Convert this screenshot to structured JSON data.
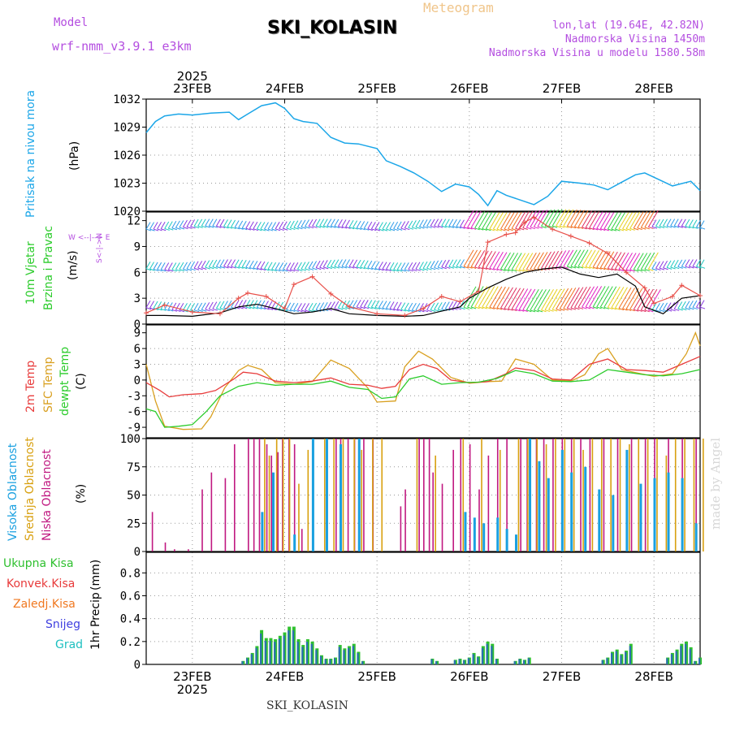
{
  "header": {
    "model_label": "Model",
    "model_name": "wrf-nmm_v3.9.1 e3km",
    "meteogram_label": "Meteogram",
    "station": "SKI_KOLASIN",
    "lonlat": "lon,lat (19.64E, 42.82N)",
    "altitude": "Nadmorska Visina 1450m",
    "model_altitude": "Nadmorska Visina u modelu 1580.58m",
    "watermark": "made by Angel",
    "footer_station": "SKI_KOLASIN"
  },
  "colors": {
    "pressure": "#1ba6e8",
    "wind_black": "#000000",
    "gust_red": "#e8504a",
    "t2m": "#e83c3c",
    "sfc": "#d9a020",
    "dewpt": "#2ccc2c",
    "high_cloud": "#1aa0e0",
    "mid_cloud": "#d8a010",
    "low_cloud": "#c01880",
    "total_precip": "#2fc02f",
    "convective": "#e83a3a",
    "frozen": "#f07820",
    "snow": "#4040e0",
    "graupel": "#1ec0c0"
  },
  "chart_data": {
    "type": "line",
    "time_axis": {
      "year": "2025",
      "start_day": 22.5,
      "end_day": 28.5,
      "tick_days": [
        23,
        24,
        25,
        26,
        27,
        28
      ],
      "tick_labels": [
        "23FEB",
        "24FEB",
        "25FEB",
        "26FEB",
        "27FEB",
        "28FEB"
      ]
    },
    "panels": [
      {
        "id": "pressure",
        "ylabel": "Pritisak na nivou mora",
        "unit": "(hPa)",
        "ylim": [
          1020,
          1032
        ],
        "yticks": [
          1020,
          1023,
          1026,
          1029,
          1032
        ],
        "series": [
          {
            "name": "MSLP",
            "x": [
              22.5,
              22.6,
              22.7,
              22.85,
              23.0,
              23.2,
              23.4,
              23.5,
              23.6,
              23.75,
              23.9,
              24.0,
              24.1,
              24.2,
              24.35,
              24.5,
              24.65,
              24.8,
              25.0,
              25.1,
              25.25,
              25.4,
              25.55,
              25.7,
              25.85,
              26.0,
              26.1,
              26.2,
              26.3,
              26.4,
              26.55,
              26.7,
              26.85,
              27.0,
              27.2,
              27.35,
              27.5,
              27.65,
              27.8,
              27.9,
              28.05,
              28.2,
              28.4,
              28.5
            ],
            "y": [
              1028.4,
              1029.6,
              1030.2,
              1030.4,
              1030.3,
              1030.5,
              1030.6,
              1029.8,
              1030.4,
              1031.3,
              1031.6,
              1031.0,
              1029.9,
              1029.6,
              1029.4,
              1027.9,
              1027.3,
              1027.2,
              1026.7,
              1025.4,
              1024.8,
              1024.1,
              1023.2,
              1022.1,
              1022.9,
              1022.6,
              1021.8,
              1020.6,
              1022.2,
              1021.7,
              1021.2,
              1020.7,
              1021.6,
              1023.2,
              1023.0,
              1022.8,
              1022.3,
              1023.1,
              1023.9,
              1024.1,
              1023.4,
              1022.7,
              1023.2,
              1022.2
            ]
          }
        ]
      },
      {
        "id": "wind",
        "ylabel": "10m Vjetar Brzina i Pravac",
        "unit": "(m/s)",
        "compass": "W <--|--> E",
        "compass_ns": "S<-|->N",
        "ylim": [
          0,
          13
        ],
        "yticks": [
          0,
          3,
          6,
          9,
          12
        ],
        "barb_rows": [
          1.8,
          6.5,
          11.2
        ],
        "series": [
          {
            "name": "speed",
            "x": [
              22.5,
              22.7,
              23.0,
              23.3,
              23.5,
              23.7,
              23.9,
              24.1,
              24.3,
              24.5,
              24.7,
              25.0,
              25.3,
              25.5,
              25.7,
              25.9,
              26.0,
              26.2,
              26.4,
              26.6,
              26.8,
              27.0,
              27.2,
              27.4,
              27.6,
              27.8,
              27.9,
              28.1,
              28.3,
              28.5
            ],
            "y": [
              1.0,
              1.0,
              0.9,
              1.3,
              2.0,
              2.3,
              1.8,
              1.2,
              1.4,
              1.8,
              1.2,
              1.0,
              0.9,
              1.0,
              1.5,
              2.0,
              3.0,
              4.2,
              5.2,
              6.0,
              6.4,
              6.6,
              5.8,
              5.4,
              5.8,
              4.4,
              2.0,
              1.2,
              3.0,
              3.3
            ]
          },
          {
            "name": "gust",
            "x": [
              22.5,
              22.7,
              23.0,
              23.3,
              23.5,
              23.6,
              23.8,
              24.0,
              24.1,
              24.3,
              24.5,
              24.7,
              25.0,
              25.3,
              25.5,
              25.7,
              25.9,
              26.1,
              26.2,
              26.4,
              26.5,
              26.6,
              26.7,
              26.9,
              27.1,
              27.3,
              27.5,
              27.7,
              27.9,
              28.0,
              28.2,
              28.3,
              28.5
            ],
            "y": [
              1.3,
              2.2,
              1.4,
              1.2,
              3.0,
              3.6,
              3.2,
              1.8,
              4.6,
              5.5,
              3.5,
              2.0,
              1.2,
              1.0,
              1.8,
              3.2,
              2.6,
              3.8,
              9.5,
              10.4,
              10.6,
              11.8,
              12.4,
              11.0,
              10.2,
              9.4,
              8.2,
              6.0,
              4.2,
              2.4,
              3.2,
              4.5,
              3.3
            ]
          }
        ]
      },
      {
        "id": "temperature",
        "ylabel": "2m Temp",
        "ylabel2": "SFC Temp",
        "ylabel3": "dewpt Temp",
        "unit": "(C)",
        "ylim": [
          -11,
          10.5
        ],
        "yticks": [
          -9,
          -6,
          -3,
          0,
          3,
          6,
          9
        ],
        "series": [
          {
            "name": "2m Temp",
            "x": [
              22.5,
              22.65,
              22.75,
              22.9,
              23.1,
              23.25,
              23.45,
              23.55,
              23.7,
              23.9,
              24.1,
              24.3,
              24.5,
              24.7,
              24.9,
              25.05,
              25.2,
              25.35,
              25.5,
              25.65,
              25.8,
              26.0,
              26.2,
              26.4,
              26.5,
              26.7,
              26.9,
              27.1,
              27.3,
              27.5,
              27.7,
              27.9,
              28.1,
              28.3,
              28.5
            ],
            "y": [
              -0.5,
              -2.0,
              -3.2,
              -2.8,
              -2.6,
              -2.0,
              0.2,
              1.5,
              1.2,
              -0.2,
              -0.5,
              -0.2,
              0.4,
              -0.8,
              -1.0,
              -1.6,
              -1.2,
              2.0,
              3.0,
              2.2,
              0.0,
              -0.5,
              -0.3,
              1.2,
              2.3,
              1.8,
              0.2,
              0.0,
              3.0,
              4.0,
              2.0,
              1.8,
              1.5,
              3.0,
              4.5
            ]
          },
          {
            "name": "SFC Temp",
            "x": [
              22.5,
              22.6,
              22.7,
              22.9,
              23.1,
              23.2,
              23.35,
              23.5,
              23.6,
              23.75,
              23.9,
              24.1,
              24.3,
              24.5,
              24.7,
              24.9,
              25.0,
              25.2,
              25.3,
              25.45,
              25.6,
              25.8,
              26.0,
              26.2,
              26.35,
              26.5,
              26.7,
              26.9,
              27.1,
              27.25,
              27.4,
              27.5,
              27.65,
              27.8,
              28.0,
              28.2,
              28.35,
              28.45,
              28.5
            ],
            "y": [
              3.0,
              -4.0,
              -8.8,
              -9.4,
              -9.3,
              -7.0,
              -1.5,
              1.8,
              2.8,
              2.0,
              -0.5,
              -0.8,
              -0.3,
              3.8,
              2.2,
              -1.5,
              -4.2,
              -4.0,
              2.5,
              5.5,
              4.0,
              0.5,
              -0.6,
              -0.3,
              -0.2,
              4.0,
              3.0,
              0.0,
              -0.2,
              1.0,
              5.0,
              6.0,
              2.0,
              1.4,
              0.7,
              1.2,
              5.0,
              9.0,
              6.5
            ]
          },
          {
            "name": "dewpt Temp",
            "x": [
              22.5,
              22.6,
              22.7,
              22.85,
              23.0,
              23.15,
              23.3,
              23.5,
              23.7,
              23.9,
              24.1,
              24.3,
              24.5,
              24.7,
              24.9,
              25.05,
              25.2,
              25.35,
              25.5,
              25.7,
              25.9,
              26.1,
              26.3,
              26.5,
              26.7,
              26.9,
              27.1,
              27.3,
              27.5,
              27.7,
              27.9,
              28.1,
              28.3,
              28.5
            ],
            "y": [
              -5.5,
              -6.0,
              -9.0,
              -8.8,
              -8.5,
              -6.0,
              -3.0,
              -1.2,
              -0.5,
              -1.0,
              -0.8,
              -0.8,
              -0.2,
              -1.4,
              -1.8,
              -3.5,
              -3.2,
              0.2,
              0.8,
              -0.8,
              -0.5,
              -0.4,
              0.3,
              1.8,
              1.2,
              -0.2,
              -0.3,
              0.0,
              2.0,
              1.5,
              1.0,
              0.8,
              1.2,
              2.0
            ]
          }
        ]
      },
      {
        "id": "cloud",
        "ylabel": "Visoka Oblacnost",
        "ylabel2": "Srednja Oblacnost",
        "ylabel3": "Niska Oblacnost",
        "unit": "(%)",
        "ylim": [
          0,
          100
        ],
        "yticks": [
          0,
          25,
          50,
          75,
          100
        ],
        "low_x": [
          22.56,
          22.7,
          22.8,
          22.95,
          23.1,
          23.2,
          23.35,
          23.45,
          23.6,
          23.66,
          23.72,
          23.8,
          23.85,
          23.92,
          23.97,
          24.04,
          24.1,
          24.18,
          24.3,
          24.45,
          24.55,
          24.6,
          24.68,
          24.75,
          24.85,
          24.95,
          25.25,
          25.3,
          25.45,
          25.5,
          25.56,
          25.6,
          25.7,
          25.82,
          25.9,
          26.0,
          26.1,
          26.2,
          26.3,
          26.4,
          26.55,
          26.62,
          26.72,
          26.8,
          26.9,
          27.0,
          27.1,
          27.2,
          27.3,
          27.45,
          27.6,
          27.75,
          27.9,
          28.0,
          28.15,
          28.3,
          28.45
        ],
        "low_y": [
          35,
          8,
          2,
          2,
          55,
          70,
          65,
          95,
          100,
          100,
          100,
          95,
          85,
          88,
          100,
          100,
          95,
          20,
          100,
          100,
          100,
          100,
          100,
          100,
          100,
          100,
          40,
          55,
          100,
          100,
          100,
          70,
          60,
          90,
          100,
          95,
          55,
          85,
          100,
          100,
          100,
          100,
          100,
          100,
          100,
          100,
          100,
          100,
          100,
          100,
          100,
          100,
          100,
          100,
          100,
          100,
          100
        ],
        "mid_x": [
          23.75,
          23.8,
          23.88,
          23.95,
          24.02,
          24.12,
          24.22,
          24.4,
          24.5,
          24.6,
          24.72,
          24.8,
          24.92,
          25.02,
          25.4,
          25.6,
          25.9,
          26.1,
          26.3,
          26.5,
          26.6,
          26.7,
          26.8,
          26.9,
          27.0,
          27.1,
          27.2,
          27.3,
          27.4,
          27.5,
          27.6,
          27.7,
          27.8,
          27.9,
          28.0,
          28.1,
          28.2,
          28.3,
          28.4,
          28.5
        ],
        "mid_y": [
          100,
          85,
          100,
          100,
          100,
          60,
          90,
          100,
          100,
          100,
          100,
          90,
          100,
          100,
          100,
          85,
          100,
          100,
          90,
          100,
          100,
          100,
          95,
          100,
          100,
          100,
          90,
          100,
          100,
          100,
          100,
          95,
          100,
          100,
          100,
          85,
          100,
          100,
          100,
          100
        ],
        "high_x": [
          23.7,
          23.82,
          24.05,
          24.25,
          24.4,
          24.55,
          24.75,
          25.9,
          26.0,
          26.1,
          26.25,
          26.35,
          26.45,
          26.6,
          26.7,
          26.8,
          26.95,
          27.05,
          27.2,
          27.35,
          27.5,
          27.65,
          27.8,
          27.95,
          28.1,
          28.25,
          28.4
        ],
        "high_y": [
          35,
          70,
          15,
          100,
          100,
          95,
          100,
          35,
          30,
          25,
          30,
          20,
          15,
          100,
          80,
          65,
          90,
          70,
          75,
          55,
          50,
          90,
          60,
          65,
          70,
          65,
          25
        ]
      },
      {
        "id": "precip",
        "ylabel": "1hr Precip",
        "unit": "(mm)",
        "ylim": [
          0,
          0.98
        ],
        "yticks": [
          0,
          0.2,
          0.4,
          0.6,
          0.8
        ],
        "ytick_labels": [
          "0",
          "0.2",
          "0.4",
          "0.6",
          "0.8"
        ],
        "bars_x": [
          23.55,
          23.6,
          23.65,
          23.7,
          23.75,
          23.8,
          23.85,
          23.9,
          23.95,
          24.0,
          24.05,
          24.1,
          24.15,
          24.2,
          24.25,
          24.3,
          24.35,
          24.4,
          24.45,
          24.5,
          24.55,
          24.6,
          24.65,
          24.7,
          24.75,
          24.8,
          24.85,
          25.6,
          25.65,
          25.85,
          25.9,
          25.95,
          26.0,
          26.05,
          26.1,
          26.15,
          26.2,
          26.25,
          26.3,
          26.5,
          26.55,
          26.6,
          26.65,
          27.45,
          27.5,
          27.55,
          27.6,
          27.65,
          27.7,
          27.75,
          28.15,
          28.2,
          28.25,
          28.3,
          28.35,
          28.4,
          28.45,
          28.5
        ],
        "total_y": [
          0.03,
          0.06,
          0.1,
          0.16,
          0.3,
          0.23,
          0.23,
          0.22,
          0.25,
          0.28,
          0.33,
          0.33,
          0.22,
          0.17,
          0.22,
          0.2,
          0.14,
          0.08,
          0.05,
          0.05,
          0.06,
          0.17,
          0.14,
          0.16,
          0.18,
          0.11,
          0.03,
          0.05,
          0.03,
          0.04,
          0.05,
          0.04,
          0.06,
          0.1,
          0.07,
          0.16,
          0.2,
          0.18,
          0.05,
          0.03,
          0.05,
          0.04,
          0.06,
          0.04,
          0.06,
          0.11,
          0.13,
          0.09,
          0.12,
          0.18,
          0.06,
          0.1,
          0.13,
          0.18,
          0.2,
          0.15,
          0.03,
          0.06
        ],
        "legend": [
          "Ukupna Kisa",
          "Konvek.Kisa",
          "Zaledj.Kisa",
          "Snijeg",
          "Grad"
        ]
      }
    ]
  }
}
